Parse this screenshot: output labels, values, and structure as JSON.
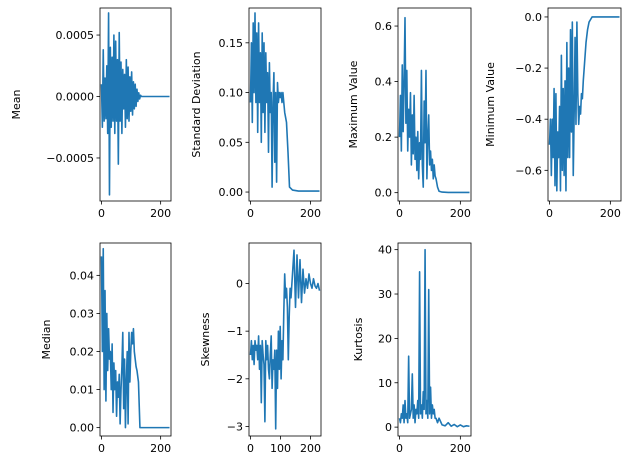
{
  "chart_data": [
    {
      "type": "line",
      "ylabel": "Mean",
      "xlim": [
        -5,
        235
      ],
      "ylim": [
        -0.00085,
        0.00072
      ],
      "xticks": [
        0,
        200
      ],
      "xtick_labels": [
        "0",
        "200"
      ],
      "yticks": [
        -0.0005,
        0,
        0.0005
      ],
      "ytick_labels": [
        "−0.0005",
        "0.0000",
        "0.0005"
      ],
      "color": "#1f77b4",
      "x": [
        0,
        3,
        6,
        9,
        12,
        15,
        18,
        21,
        24,
        27,
        30,
        33,
        36,
        39,
        42,
        45,
        48,
        51,
        54,
        57,
        60,
        63,
        66,
        69,
        72,
        75,
        78,
        81,
        84,
        87,
        90,
        93,
        96,
        99,
        102,
        105,
        108,
        111,
        114,
        117,
        120,
        123,
        126,
        129,
        132,
        135,
        140,
        150,
        160,
        180,
        200,
        215,
        230
      ],
      "y": [
        0.0001,
        -0.00025,
        0.00038,
        -0.0002,
        0.00015,
        -0.00018,
        0.00025,
        -0.0003,
        0.00068,
        -0.0008,
        0.0004,
        -0.00025,
        0.00032,
        -0.0002,
        0.0005,
        -0.0003,
        0.00045,
        -0.0002,
        0.0003,
        -0.00055,
        0.00052,
        -0.0002,
        0.00028,
        -0.0003,
        0.00022,
        -0.0001,
        0.00018,
        -0.00025,
        0.0003,
        -0.00018,
        0.00024,
        -0.0002,
        0.00016,
        -0.00012,
        0.0002,
        -0.00015,
        0.00012,
        -0.0001,
        0.0001,
        -8e-05,
        6e-05,
        -4e-05,
        3e-05,
        -2e-05,
        1e-05,
        0,
        0,
        0,
        0,
        0,
        0,
        0,
        0
      ]
    },
    {
      "type": "line",
      "ylabel": "Standard Deviation",
      "xlim": [
        -5,
        235
      ],
      "ylim": [
        -0.009,
        0.185
      ],
      "xticks": [
        0,
        200
      ],
      "xtick_labels": [
        "0",
        "200"
      ],
      "yticks": [
        0,
        0.05,
        0.1,
        0.15
      ],
      "ytick_labels": [
        "0.00",
        "0.05",
        "0.10",
        "0.15"
      ],
      "color": "#1f77b4",
      "x": [
        0,
        3,
        6,
        9,
        12,
        15,
        18,
        21,
        24,
        27,
        30,
        33,
        36,
        39,
        42,
        45,
        48,
        51,
        54,
        57,
        60,
        63,
        66,
        69,
        72,
        75,
        78,
        81,
        84,
        87,
        90,
        93,
        96,
        99,
        102,
        105,
        108,
        111,
        114,
        117,
        120,
        125,
        130,
        140,
        160,
        200,
        230
      ],
      "y": [
        0.09,
        0.15,
        0.07,
        0.17,
        0.1,
        0.18,
        0.09,
        0.16,
        0.06,
        0.17,
        0.09,
        0.14,
        0.05,
        0.16,
        0.08,
        0.15,
        0.06,
        0.14,
        0.09,
        0.12,
        0.04,
        0.13,
        0.08,
        0.1,
        0.005,
        0.09,
        0.12,
        0.03,
        0.1,
        0.01,
        0.11,
        0.09,
        0.1,
        0.095,
        0.1,
        0.09,
        0.1,
        0.09,
        0.08,
        0.075,
        0.07,
        0.04,
        0.005,
        0.002,
        0.001,
        0.001,
        0.001
      ]
    },
    {
      "type": "line",
      "ylabel": "Maximum Value",
      "xlim": [
        -5,
        235
      ],
      "ylim": [
        -0.03,
        0.665
      ],
      "xticks": [
        0,
        200
      ],
      "xtick_labels": [
        "0",
        "200"
      ],
      "yticks": [
        0,
        0.2,
        0.4,
        0.6
      ],
      "ytick_labels": [
        "0.0",
        "0.2",
        "0.4",
        "0.6"
      ],
      "color": "#1f77b4",
      "x": [
        0,
        3,
        6,
        9,
        12,
        15,
        18,
        21,
        24,
        27,
        30,
        33,
        36,
        39,
        42,
        45,
        48,
        51,
        54,
        57,
        60,
        63,
        66,
        69,
        72,
        75,
        78,
        81,
        84,
        87,
        90,
        93,
        96,
        99,
        102,
        105,
        108,
        111,
        114,
        117,
        120,
        125,
        130,
        140,
        160,
        200,
        230
      ],
      "y": [
        0.2,
        0.35,
        0.15,
        0.46,
        0.22,
        0.4,
        0.63,
        0.25,
        0.44,
        0.15,
        0.3,
        0.2,
        0.36,
        0.1,
        0.28,
        0.14,
        0.35,
        0.12,
        0.2,
        0.08,
        0.22,
        0.05,
        0.18,
        0.12,
        0.44,
        0.1,
        0.02,
        0.33,
        0.18,
        0.44,
        0.05,
        0.2,
        0.28,
        0.1,
        0.15,
        0.08,
        0.12,
        0.05,
        0.1,
        0.06,
        0.05,
        0.02,
        0.005,
        0.002,
        0.001,
        0.001,
        0.001
      ]
    },
    {
      "type": "line",
      "ylabel": "Minimum Value",
      "xlim": [
        -5,
        235
      ],
      "ylim": [
        -0.72,
        0.035
      ],
      "xticks": [
        0,
        200
      ],
      "xtick_labels": [
        "0",
        "200"
      ],
      "yticks": [
        0,
        -0.2,
        -0.4,
        -0.6
      ],
      "ytick_labels": [
        "0.0",
        "−0.2",
        "−0.4",
        "−0.6"
      ],
      "color": "#1f77b4",
      "x": [
        0,
        3,
        6,
        9,
        12,
        15,
        18,
        21,
        24,
        27,
        30,
        33,
        36,
        39,
        42,
        45,
        48,
        51,
        54,
        57,
        60,
        63,
        66,
        69,
        72,
        75,
        78,
        81,
        84,
        87,
        90,
        93,
        96,
        99,
        102,
        105,
        108,
        111,
        114,
        117,
        120,
        125,
        130,
        135,
        140,
        160,
        200,
        230
      ],
      "y": [
        -0.5,
        -0.4,
        -0.62,
        -0.4,
        -0.55,
        -0.28,
        -0.66,
        -0.3,
        -0.68,
        -0.45,
        -0.55,
        -0.35,
        -0.68,
        -0.15,
        -0.6,
        -0.28,
        -0.62,
        -0.25,
        -0.68,
        -0.1,
        -0.55,
        -0.2,
        -0.55,
        -0.05,
        -0.45,
        -0.02,
        -0.62,
        -0.38,
        -0.08,
        -0.42,
        -0.02,
        -0.3,
        -0.42,
        -0.35,
        -0.38,
        -0.3,
        -0.32,
        -0.25,
        -0.2,
        -0.15,
        -0.1,
        -0.05,
        -0.02,
        -0.01,
        0,
        0,
        0,
        0
      ]
    },
    {
      "type": "line",
      "ylabel": "Median",
      "xlim": [
        -5,
        235
      ],
      "ylim": [
        -0.0022,
        0.0485
      ],
      "xticks": [
        0,
        200
      ],
      "xtick_labels": [
        "0",
        "200"
      ],
      "yticks": [
        0,
        0.01,
        0.02,
        0.03,
        0.04
      ],
      "ytick_labels": [
        "0.00",
        "0.01",
        "0.02",
        "0.03",
        "0.04"
      ],
      "color": "#1f77b4",
      "x": [
        0,
        3,
        6,
        9,
        12,
        15,
        18,
        21,
        24,
        27,
        30,
        33,
        36,
        39,
        42,
        45,
        48,
        51,
        54,
        57,
        60,
        63,
        66,
        69,
        72,
        75,
        78,
        81,
        84,
        87,
        90,
        93,
        96,
        99,
        102,
        105,
        108,
        111,
        114,
        117,
        120,
        125,
        130,
        140,
        160,
        200,
        230
      ],
      "y": [
        0.045,
        0.02,
        0.047,
        0.01,
        0.036,
        0.007,
        0.03,
        0.015,
        0.026,
        0.018,
        0.02,
        0.01,
        0.022,
        0.004,
        0.017,
        0.01,
        0.015,
        0.003,
        0.012,
        0.008,
        0.014,
        0.001,
        0.01,
        0.016,
        0.025,
        0.005,
        0.018,
        0.0,
        0.012,
        0.02,
        0.001,
        0.025,
        0.012,
        0.02,
        0.025,
        0.022,
        0.026,
        0.02,
        0.018,
        0.016,
        0.015,
        0.012,
        0.0,
        0.0,
        0.0,
        0.0,
        0.0
      ]
    },
    {
      "type": "line",
      "ylabel": "Skewness",
      "xlim": [
        -5,
        235
      ],
      "ylim": [
        -3.2,
        0.85
      ],
      "xticks": [
        0,
        100,
        200
      ],
      "xtick_labels": [
        "0",
        "100",
        "200"
      ],
      "yticks": [
        0,
        -1,
        -2,
        -3
      ],
      "ytick_labels": [
        "0",
        "−1",
        "−2",
        "−3"
      ],
      "color": "#1f77b4",
      "x": [
        0,
        3,
        6,
        9,
        12,
        15,
        18,
        21,
        24,
        27,
        30,
        33,
        36,
        39,
        42,
        45,
        48,
        51,
        54,
        57,
        60,
        63,
        66,
        69,
        72,
        75,
        78,
        81,
        84,
        87,
        90,
        93,
        96,
        99,
        102,
        105,
        108,
        111,
        114,
        117,
        120,
        123,
        126,
        129,
        132,
        135,
        140,
        145,
        150,
        155,
        160,
        165,
        170,
        175,
        180,
        185,
        190,
        195,
        200,
        205,
        210,
        215,
        220,
        225,
        230
      ],
      "y": [
        -1.5,
        -1.2,
        -1.6,
        -1.3,
        -1.7,
        -1.2,
        -1.4,
        -1.3,
        -1.6,
        -1.1,
        -1.8,
        -1.3,
        -2.5,
        -1.2,
        -1.5,
        -1.7,
        -2.9,
        -1.2,
        -1.6,
        -1.3,
        -1.8,
        -2.0,
        -1.5,
        -1.1,
        -2.2,
        -1.6,
        -1.8,
        -1.4,
        -3.05,
        -1.4,
        -2.2,
        -1.0,
        -1.8,
        -0.9,
        -2.0,
        -1.2,
        -1.6,
        -0.6,
        0.2,
        -0.3,
        -0.1,
        -0.5,
        -1.6,
        -0.7,
        -0.1,
        -0.3,
        0.2,
        0.7,
        -0.5,
        0.6,
        -0.3,
        0.5,
        -0.4,
        0.3,
        -0.2,
        0.1,
        -0.1,
        0.2,
        0.0,
        -0.1,
        0.1,
        -0.05,
        -0.1,
        0.0,
        -0.15
      ]
    },
    {
      "type": "line",
      "ylabel": "Kurtosis",
      "xlim": [
        -5,
        235
      ],
      "ylim": [
        -2.0,
        41.5
      ],
      "xticks": [
        0,
        200
      ],
      "xtick_labels": [
        "0",
        "200"
      ],
      "yticks": [
        0,
        10,
        20,
        30,
        40
      ],
      "ytick_labels": [
        "0",
        "10",
        "20",
        "30",
        "40"
      ],
      "color": "#1f77b4",
      "x": [
        0,
        3,
        6,
        9,
        12,
        15,
        18,
        21,
        24,
        27,
        30,
        33,
        36,
        39,
        42,
        45,
        48,
        51,
        54,
        57,
        60,
        63,
        66,
        69,
        72,
        75,
        78,
        81,
        84,
        87,
        90,
        93,
        96,
        99,
        102,
        105,
        108,
        111,
        114,
        117,
        120,
        125,
        130,
        140,
        150,
        160,
        170,
        180,
        190,
        200,
        210,
        220,
        230
      ],
      "y": [
        2,
        1,
        3,
        2,
        5,
        1,
        6,
        2,
        3,
        1,
        16,
        2,
        3,
        4,
        12,
        2,
        5,
        1,
        4,
        3,
        6,
        2,
        35,
        3,
        5,
        2,
        8,
        4,
        40,
        3,
        6,
        2,
        31,
        3,
        9,
        2,
        5,
        3,
        4,
        2,
        2,
        1,
        2,
        0.5,
        0.3,
        1,
        0.2,
        0.6,
        0.1,
        0.5,
        0.1,
        0.3,
        0.2
      ]
    }
  ]
}
